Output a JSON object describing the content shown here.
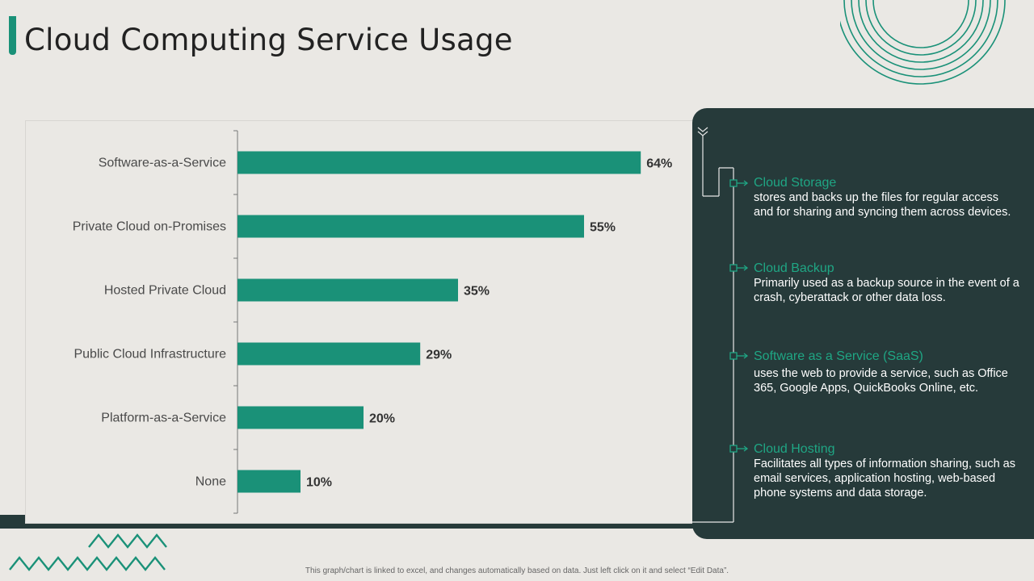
{
  "title": "Cloud Computing Service Usage",
  "chart_data": {
    "type": "bar",
    "orientation": "horizontal",
    "categories": [
      "Software-as-a-Service",
      "Private Cloud on-Promises",
      "Hosted Private Cloud",
      "Public Cloud Infrastructure",
      "Platform-as-a-Service",
      "None"
    ],
    "values": [
      64,
      55,
      35,
      29,
      20,
      10
    ],
    "value_labels": [
      "64%",
      "55%",
      "35%",
      "29%",
      "20%",
      "10%"
    ],
    "unit": "%",
    "title": "",
    "xlabel": "",
    "ylabel": "",
    "xlim": [
      0,
      100
    ],
    "bar_color": "#1A9178",
    "grid": false,
    "legend": "none"
  },
  "features": [
    {
      "title": "Cloud Storage",
      "desc": "stores and backs up the files for regular access and for sharing and syncing them across devices."
    },
    {
      "title": "Cloud Backup",
      "desc": "Primarily used as a backup source in the event of a crash, cyberattack or other data loss."
    },
    {
      "title": "Software as a Service (SaaS)",
      "desc": "uses the web to provide  a service, such as Office 365, Google Apps, QuickBooks Online, etc."
    },
    {
      "title": "Cloud Hosting",
      "desc": "Facilitates all types of information sharing, such as email services, application hosting, web-based phone systems and data storage."
    }
  ],
  "footnote": "This graph/chart is linked to excel, and changes automatically based on data. Just left click on it and select “Edit Data”.",
  "colors": {
    "accent": "#1A9178",
    "panel": "#263A3A",
    "background": "#EAE8E4"
  }
}
